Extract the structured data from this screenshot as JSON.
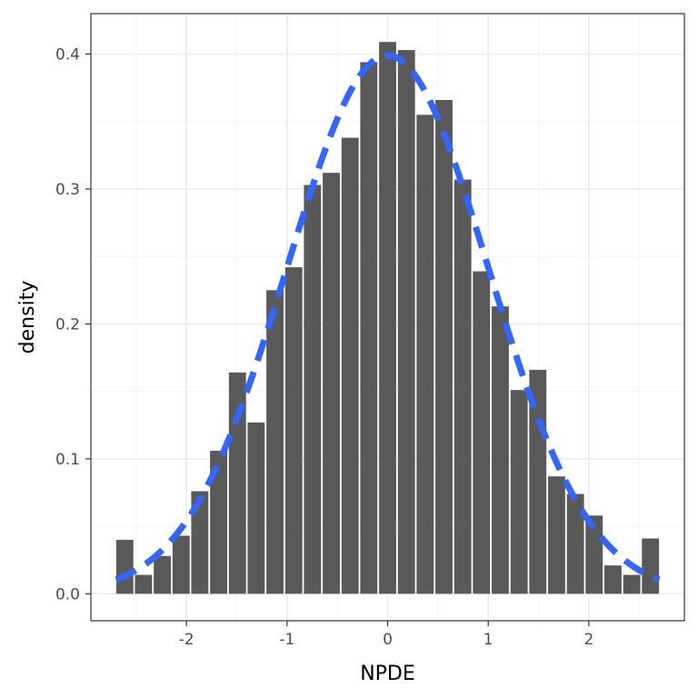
{
  "chart_data": {
    "type": "bar",
    "title": "",
    "xlabel": "NPDE",
    "ylabel": "density",
    "xlim": [
      -2.95,
      2.95
    ],
    "ylim": [
      -0.02,
      0.43
    ],
    "x_ticks": [
      -2,
      -1,
      0,
      1,
      2
    ],
    "x_tick_labels": [
      "-2",
      "-1",
      "0",
      "1",
      "2"
    ],
    "y_ticks": [
      0.0,
      0.1,
      0.2,
      0.3,
      0.4
    ],
    "y_tick_labels": [
      "0.0",
      "0.1",
      "0.2",
      "0.3",
      "0.4"
    ],
    "grid": true,
    "bin_width": 0.1867,
    "bins": [
      {
        "x": -2.613,
        "density": 0.04
      },
      {
        "x": -2.427,
        "density": 0.014
      },
      {
        "x": -2.24,
        "density": 0.028
      },
      {
        "x": -2.053,
        "density": 0.043
      },
      {
        "x": -1.867,
        "density": 0.076
      },
      {
        "x": -1.68,
        "density": 0.106
      },
      {
        "x": -1.493,
        "density": 0.164
      },
      {
        "x": -1.307,
        "density": 0.127
      },
      {
        "x": -1.12,
        "density": 0.225
      },
      {
        "x": -0.933,
        "density": 0.242
      },
      {
        "x": -0.747,
        "density": 0.303
      },
      {
        "x": -0.56,
        "density": 0.312
      },
      {
        "x": -0.373,
        "density": 0.338
      },
      {
        "x": -0.187,
        "density": 0.394
      },
      {
        "x": 0.0,
        "density": 0.409
      },
      {
        "x": 0.187,
        "density": 0.403
      },
      {
        "x": 0.373,
        "density": 0.355
      },
      {
        "x": 0.56,
        "density": 0.366
      },
      {
        "x": 0.747,
        "density": 0.307
      },
      {
        "x": 0.933,
        "density": 0.239
      },
      {
        "x": 1.12,
        "density": 0.213
      },
      {
        "x": 1.307,
        "density": 0.151
      },
      {
        "x": 1.493,
        "density": 0.166
      },
      {
        "x": 1.68,
        "density": 0.087
      },
      {
        "x": 1.867,
        "density": 0.074
      },
      {
        "x": 2.053,
        "density": 0.058
      },
      {
        "x": 2.24,
        "density": 0.021
      },
      {
        "x": 2.427,
        "density": 0.014
      },
      {
        "x": 2.613,
        "density": 0.041
      }
    ],
    "reference_curve": {
      "type": "normal-density",
      "mean": 0,
      "sd": 1,
      "x_range": [
        -2.7,
        2.7
      ],
      "color": "#3366ff",
      "style": "dashed"
    },
    "bar_color": "#595959"
  }
}
